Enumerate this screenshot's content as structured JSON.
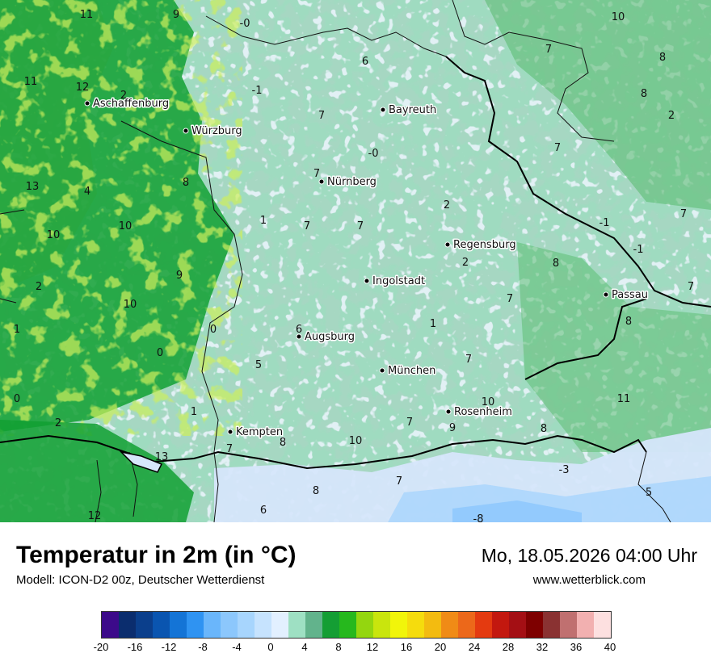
{
  "map": {
    "base_colors": [
      "#9fdbc0",
      "#6aae8a",
      "#d6e6fb",
      "#12a033",
      "#2aa63e",
      "#a8df1c",
      "#5dbd73"
    ],
    "cities": [
      {
        "name": "Aschaffenburg"
      },
      {
        "name": "Würzburg"
      },
      {
        "name": "Bayreuth"
      },
      {
        "name": "Nürnberg"
      },
      {
        "name": "Regensburg"
      },
      {
        "name": "Ingolstadt"
      },
      {
        "name": "Passau"
      },
      {
        "name": "Augsburg"
      },
      {
        "name": "München"
      },
      {
        "name": "Rosenheim"
      },
      {
        "name": "Kempten"
      }
    ],
    "temperature_labels": [
      "11",
      "9",
      "-0",
      "10",
      "6",
      "7",
      "8",
      "11",
      "12",
      "2",
      "-1",
      "8",
      "7",
      "2",
      "-0",
      "7",
      "13",
      "4",
      "8",
      "7",
      "2",
      "-1",
      "7",
      "1",
      "7",
      "7",
      "10",
      "10",
      "2",
      "8",
      "-1",
      "9",
      "2",
      "7",
      "7",
      "10",
      "1",
      "6",
      "8",
      "0",
      "1",
      "0",
      "7",
      "5",
      "11",
      "1",
      "10",
      "9",
      "0",
      "2",
      "7",
      "10",
      "8",
      "8",
      "13",
      "7",
      "8",
      "-3",
      "7",
      "5",
      "12",
      "6",
      "-8"
    ]
  },
  "footer": {
    "title": "Temperatur in 2m (in °C)",
    "model": "Modell: ICON-D2 00z, Deutscher Wetterdienst",
    "datetime": "Mo, 18.05.2026 04:00 Uhr",
    "website": "www.wetterblick.com"
  },
  "scale": {
    "colors": [
      "#3c0a8a",
      "#0b2d6e",
      "#0b3f8c",
      "#0a55b0",
      "#1474d6",
      "#2f93f2",
      "#6ab6fb",
      "#8cc7fc",
      "#a7d5fd",
      "#c6e3fe",
      "#e2f0ff",
      "#9ee0c3",
      "#62b38c",
      "#149e34",
      "#26b81d",
      "#94d60f",
      "#c9e50d",
      "#f1f50a",
      "#f5dc0d",
      "#f3bb10",
      "#f08b16",
      "#ec681a",
      "#e43a10",
      "#c3180f",
      "#a40f14",
      "#7e0000",
      "#8a3232",
      "#c07070",
      "#f2b0b0",
      "#fde0e0"
    ],
    "ticks": [
      "-20",
      "-16",
      "-12",
      "-8",
      "-4",
      "0",
      "4",
      "8",
      "12",
      "16",
      "20",
      "24",
      "28",
      "32",
      "36",
      "40"
    ]
  }
}
